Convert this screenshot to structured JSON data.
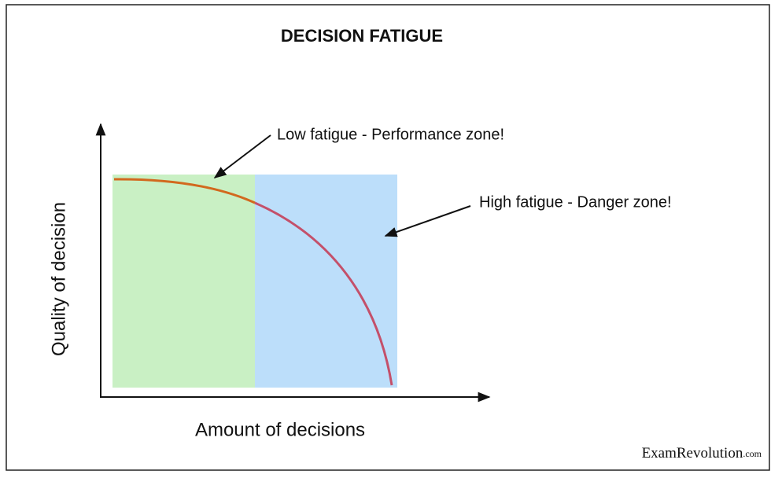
{
  "title": "DECISION FATIGUE",
  "y_axis_label": "Quality of decision",
  "x_axis_label": "Amount of decisions",
  "annotations": [
    "Low fatigue - Performance zone!",
    "High fatigue - Danger zone!"
  ],
  "watermark": {
    "brand": "ExamRevolution",
    "suffix": ".com"
  }
}
